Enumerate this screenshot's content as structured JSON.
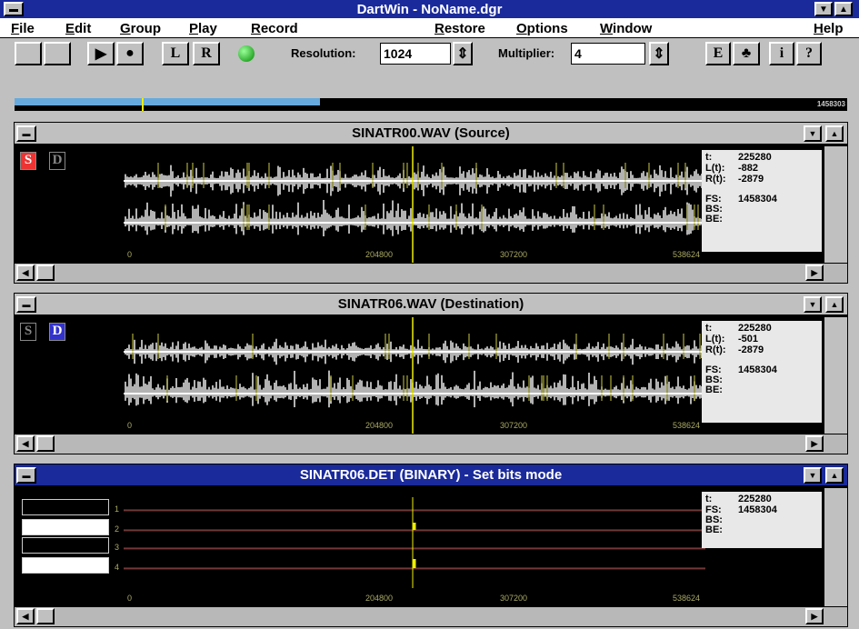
{
  "title": "DartWin - NoName.dgr",
  "menu": [
    "File",
    "Edit",
    "Group",
    "Play",
    "Record",
    "Restore",
    "Options",
    "Window",
    "Help"
  ],
  "toolbar": {
    "buttons": [
      "L",
      "R",
      "E",
      "i",
      "?"
    ],
    "resolution_label": "Resolution:",
    "resolution": "1024",
    "multiplier_label": "Multiplier:",
    "multiplier": "4"
  },
  "position_label": "1458303",
  "windows": [
    {
      "title": "SINATR00.WAV (Source)",
      "channels": [
        "S",
        "D"
      ],
      "info": [
        {
          "label": "t:",
          "value": "225280"
        },
        {
          "label": "L(t):",
          "value": "-882"
        },
        {
          "label": "R(t):",
          "value": "-2879"
        }
      ],
      "info2": [
        {
          "label": "FS:",
          "value": "1458304"
        },
        {
          "label": "BS:"
        },
        {
          "label": "BE:"
        }
      ],
      "axis": [
        "0",
        "204800",
        "307200",
        "538624"
      ]
    },
    {
      "title": "SINATR06.WAV (Destination)",
      "channels": [
        "S",
        "D"
      ],
      "info": [
        {
          "label": "t:",
          "value": "225280"
        },
        {
          "label": "L(t):",
          "value": "-501"
        },
        {
          "label": "R(t):",
          "value": "-2879"
        }
      ],
      "info2": [
        {
          "label": "FS:",
          "value": "1458304"
        },
        {
          "label": "BS:"
        },
        {
          "label": "BE:"
        }
      ],
      "axis": [
        "0",
        "204800",
        "307200",
        "538624"
      ]
    },
    {
      "title": "SINATR06.DET (BINARY) - Set bits mode",
      "tracks": [
        "1",
        "2",
        "3",
        "4"
      ],
      "info": [
        {
          "label": "t:",
          "value": "225280"
        }
      ],
      "info2": [
        {
          "label": "FS:",
          "value": "1458304"
        },
        {
          "label": "BS:"
        },
        {
          "label": "BE:"
        }
      ],
      "axis": [
        "0",
        "204800",
        "307200",
        "538624"
      ]
    }
  ]
}
